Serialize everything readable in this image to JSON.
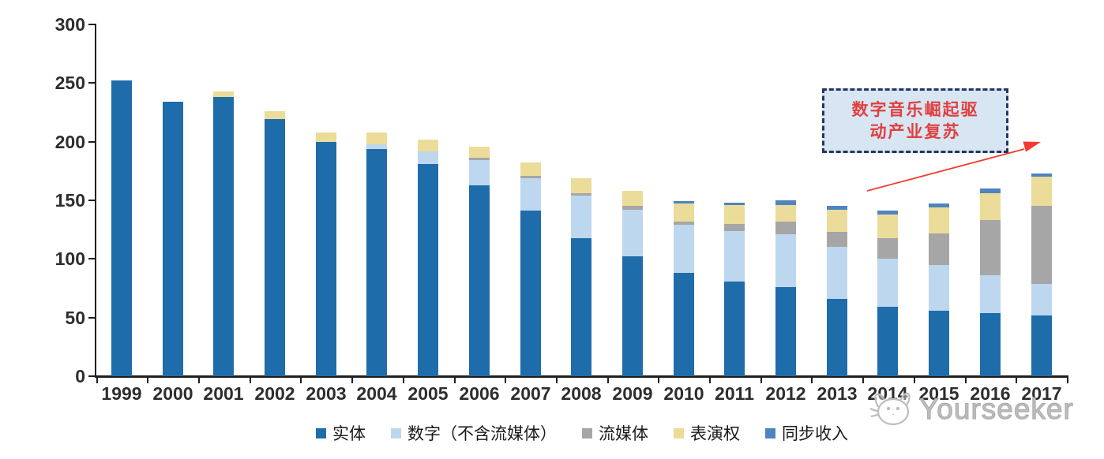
{
  "chart_data": {
    "type": "bar",
    "stacked": true,
    "title": "",
    "xlabel": "",
    "ylabel": "",
    "categories": [
      "1999",
      "2000",
      "2001",
      "2002",
      "2003",
      "2004",
      "2005",
      "2006",
      "2007",
      "2008",
      "2009",
      "2010",
      "2011",
      "2012",
      "2013",
      "2014",
      "2015",
      "2016",
      "2017"
    ],
    "series": [
      {
        "name": "实体",
        "color": "#1f6cab",
        "values": [
          252,
          234,
          238,
          219,
          200,
          194,
          181,
          163,
          141,
          118,
          102,
          88,
          81,
          76,
          66,
          59,
          56,
          54,
          52
        ]
      },
      {
        "name": "数字（不含流媒体）",
        "color": "#bdd7ee",
        "values": [
          0,
          0,
          0,
          0,
          0,
          4,
          11,
          21,
          28,
          36,
          40,
          41,
          43,
          45,
          44,
          41,
          39,
          32,
          27
        ]
      },
      {
        "name": "流媒体",
        "color": "#a6a6a6",
        "values": [
          0,
          0,
          0,
          0,
          0,
          0,
          0,
          2,
          2,
          2,
          3,
          3,
          6,
          11,
          13,
          18,
          27,
          47,
          66
        ]
      },
      {
        "name": "表演权",
        "color": "#ebdc9a",
        "values": [
          0,
          0,
          5,
          7,
          8,
          10,
          10,
          10,
          11,
          13,
          13,
          15,
          16,
          14,
          19,
          20,
          22,
          23,
          25
        ]
      },
      {
        "name": "同步收入",
        "color": "#4e84c0",
        "values": [
          0,
          0,
          0,
          0,
          0,
          0,
          0,
          0,
          0,
          0,
          0,
          2,
          2,
          4,
          3,
          3,
          3,
          4,
          3
        ]
      }
    ],
    "totals": [
      252,
      234,
      243,
      226,
      208,
      208,
      202,
      196,
      182,
      169,
      158,
      149,
      148,
      150,
      145,
      141,
      147,
      160,
      173
    ],
    "ylim": [
      0,
      300
    ],
    "yticks": [
      0,
      50,
      100,
      150,
      200,
      250,
      300
    ],
    "grid": false,
    "legend_position": "bottom"
  },
  "annotation": {
    "line1": "数字音乐崛起驱",
    "line2": "动产业复苏",
    "box_fill": "#d8e5f3",
    "border_color": "#24365c",
    "text_color": "#e04040",
    "arrow_color": "#f23a2e"
  },
  "watermark": {
    "text": "Yourseeker",
    "icon": "cat-logo-icon",
    "color": "#bababa"
  },
  "axis": {
    "line_color": "#1f1f1f",
    "label_color": "#2e2e2e"
  }
}
